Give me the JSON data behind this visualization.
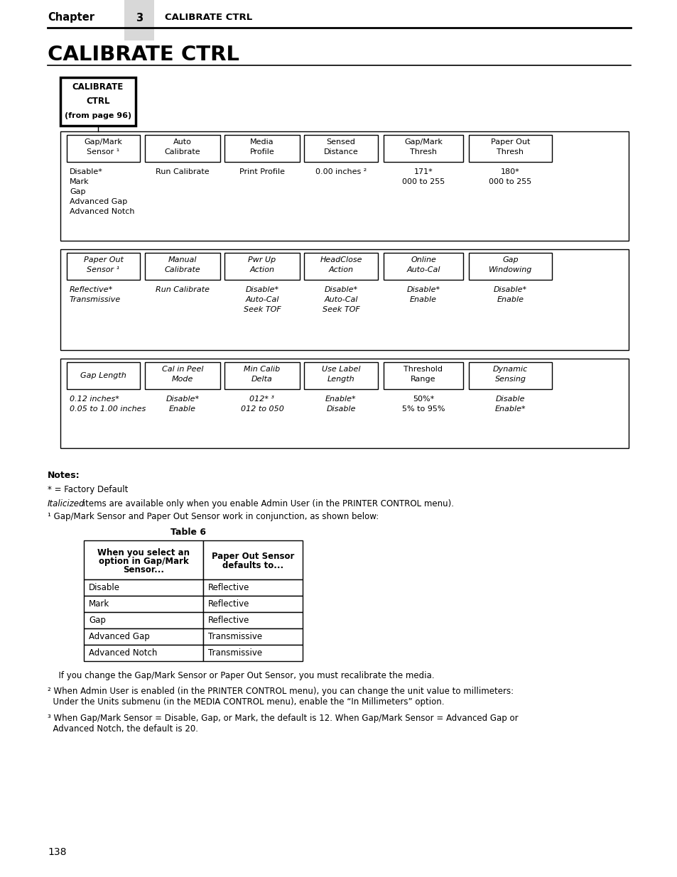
{
  "page_title": "CALIBRATE CTRL",
  "chapter_label": "Chapter",
  "chapter_num": "3",
  "chapter_title": "CALIBRATE CTRL",
  "page_num": "138",
  "root_box_lines": [
    "CALIBRATE",
    "CTRL",
    "(from page 96)"
  ],
  "row1_boxes": [
    "Gap/Mark\nSensor ¹",
    "Auto\nCalibrate",
    "Media\nProfile",
    "Sensed\nDistance",
    "Gap/Mark\nThresh",
    "Paper Out\nThresh"
  ],
  "row1_values": [
    [
      "Disable*",
      "Mark",
      "Gap",
      "Advanced Gap",
      "Advanced Notch"
    ],
    [
      "Run Calibrate"
    ],
    [
      "Print Profile"
    ],
    [
      "0.00 inches ²"
    ],
    [
      "171*",
      "000 to 255"
    ],
    [
      "180*",
      "000 to 255"
    ]
  ],
  "row2_boxes": [
    "Paper Out\nSensor ¹",
    "Manual\nCalibrate",
    "Pwr Up\nAction",
    "HeadClose\nAction",
    "Online\nAuto-Cal",
    "Gap\nWindowing"
  ],
  "row2_values": [
    [
      "Reflective*",
      "Transmissive"
    ],
    [
      "Run Calibrate"
    ],
    [
      "Disable*",
      "Auto-Cal",
      "Seek TOF"
    ],
    [
      "Disable*",
      "Auto-Cal",
      "Seek TOF"
    ],
    [
      "Disable*",
      "Enable"
    ],
    [
      "Disable*",
      "Enable"
    ]
  ],
  "row3_boxes": [
    "Gap Length",
    "Cal in Peel\nMode",
    "Min Calib\nDelta",
    "Use Label\nLength",
    "Threshold\nRange",
    "Dynamic\nSensing"
  ],
  "row3_italic": [
    true,
    true,
    true,
    true,
    false,
    true
  ],
  "row3_values": [
    [
      "0.12 inches*",
      "0.05 to 1.00 inches"
    ],
    [
      "Disable*",
      "Enable"
    ],
    [
      "012* ³",
      "012 to 050"
    ],
    [
      "Enable*",
      "Disable"
    ],
    [
      "50%*",
      "5% to 95%"
    ],
    [
      "Disable",
      "Enable*"
    ]
  ],
  "table6_rows": [
    [
      "Disable",
      "Reflective"
    ],
    [
      "Mark",
      "Reflective"
    ],
    [
      "Gap",
      "Reflective"
    ],
    [
      "Advanced Gap",
      "Transmissive"
    ],
    [
      "Advanced Notch",
      "Transmissive"
    ]
  ],
  "bg_color": "#ffffff"
}
